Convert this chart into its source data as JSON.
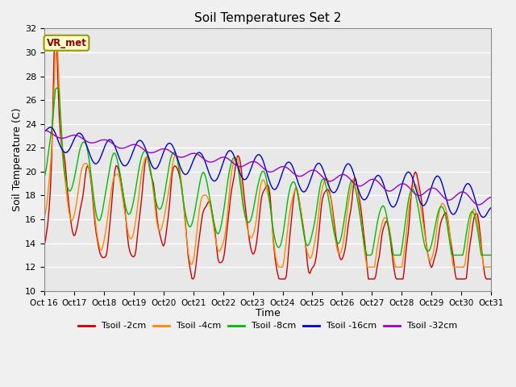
{
  "title": "Soil Temperatures Set 2",
  "xlabel": "Time",
  "ylabel": "Soil Temperature (C)",
  "ylim": [
    10,
    32
  ],
  "xlim": [
    0,
    360
  ],
  "fig_bg": "#f0f0f0",
  "plot_bg": "#e8e8e8",
  "grid_color": "white",
  "annotation_text": "VR_met",
  "annotation_bg": "#ffffcc",
  "annotation_edge": "#999900",
  "legend_labels": [
    "Tsoil -2cm",
    "Tsoil -4cm",
    "Tsoil -8cm",
    "Tsoil -16cm",
    "Tsoil -32cm"
  ],
  "line_colors": [
    "#cc0000",
    "#ff8800",
    "#00bb00",
    "#0000cc",
    "#9900cc"
  ],
  "xtick_labels": [
    "Oct 16",
    "Oct 17",
    "Oct 18",
    "Oct 19",
    "Oct 20",
    "Oct 21",
    "Oct 22",
    "Oct 23",
    "Oct 24",
    "Oct 25",
    "Oct 26",
    "Oct 27",
    "Oct 28",
    "Oct 29",
    "Oct 30",
    "Oct 31"
  ],
  "xtick_positions": [
    0,
    24,
    48,
    72,
    96,
    120,
    144,
    168,
    192,
    216,
    240,
    264,
    288,
    312,
    336,
    360
  ],
  "ytick_labels": [
    "10",
    "12",
    "14",
    "16",
    "18",
    "20",
    "22",
    "24",
    "26",
    "28",
    "30",
    "32"
  ],
  "ytick_positions": [
    10,
    12,
    14,
    16,
    18,
    20,
    22,
    24,
    26,
    28,
    30,
    32
  ]
}
